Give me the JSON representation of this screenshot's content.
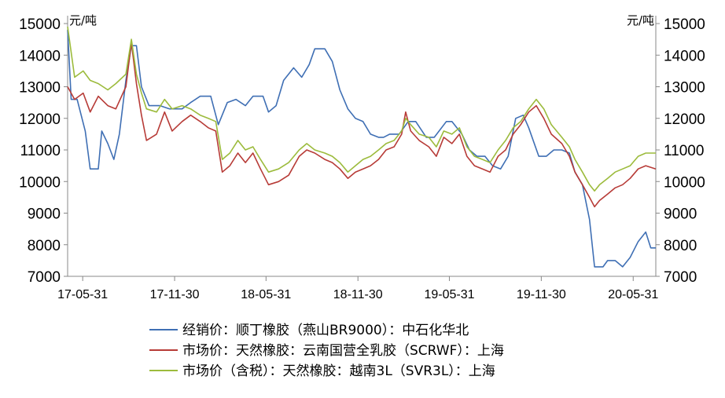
{
  "chart_data": {
    "type": "line",
    "y_unit_left": "元/吨",
    "y_unit_right": "元/吨",
    "ylim": [
      7000,
      15000
    ],
    "yticks": [
      7000,
      8000,
      9000,
      10000,
      11000,
      12000,
      13000,
      14000,
      15000
    ],
    "xlim": [
      "2017-05-01",
      "2020-07-15"
    ],
    "xticks": [
      {
        "date": "2017-05-31",
        "label": "17-05-31"
      },
      {
        "date": "2017-11-30",
        "label": "17-11-30"
      },
      {
        "date": "2018-05-31",
        "label": "18-05-31"
      },
      {
        "date": "2018-11-30",
        "label": "18-11-30"
      },
      {
        "date": "2019-05-31",
        "label": "19-05-31"
      },
      {
        "date": "2019-11-30",
        "label": "19-11-30"
      },
      {
        "date": "2020-05-31",
        "label": "20-05-31"
      }
    ],
    "grid": false,
    "legend_position": "bottom",
    "series": [
      {
        "name": "经销价：顺丁橡胶（燕山BR9000）：中石化华北",
        "color": "#3f6fb4",
        "points": [
          [
            "2017-05-01",
            14800
          ],
          [
            "2017-05-08",
            12600
          ],
          [
            "2017-05-20",
            12600
          ],
          [
            "2017-06-05",
            11600
          ],
          [
            "2017-06-15",
            10400
          ],
          [
            "2017-07-01",
            10400
          ],
          [
            "2017-07-08",
            11600
          ],
          [
            "2017-07-20",
            11200
          ],
          [
            "2017-08-01",
            10700
          ],
          [
            "2017-08-12",
            11500
          ],
          [
            "2017-08-25",
            13200
          ],
          [
            "2017-09-05",
            14300
          ],
          [
            "2017-09-15",
            14300
          ],
          [
            "2017-09-25",
            13000
          ],
          [
            "2017-10-10",
            12400
          ],
          [
            "2017-11-01",
            12400
          ],
          [
            "2017-11-20",
            12300
          ],
          [
            "2017-12-15",
            12300
          ],
          [
            "2018-01-01",
            12500
          ],
          [
            "2018-01-20",
            12700
          ],
          [
            "2018-02-10",
            12700
          ],
          [
            "2018-02-25",
            11800
          ],
          [
            "2018-03-15",
            12500
          ],
          [
            "2018-04-01",
            12600
          ],
          [
            "2018-04-20",
            12400
          ],
          [
            "2018-05-05",
            12700
          ],
          [
            "2018-05-25",
            12700
          ],
          [
            "2018-06-05",
            12200
          ],
          [
            "2018-06-20",
            12400
          ],
          [
            "2018-07-05",
            13200
          ],
          [
            "2018-07-25",
            13600
          ],
          [
            "2018-08-10",
            13300
          ],
          [
            "2018-08-25",
            13700
          ],
          [
            "2018-09-05",
            14200
          ],
          [
            "2018-09-25",
            14200
          ],
          [
            "2018-10-10",
            13800
          ],
          [
            "2018-10-25",
            12900
          ],
          [
            "2018-11-10",
            12300
          ],
          [
            "2018-11-25",
            12000
          ],
          [
            "2018-12-10",
            11900
          ],
          [
            "2018-12-25",
            11500
          ],
          [
            "2019-01-10",
            11400
          ],
          [
            "2019-01-20",
            11400
          ],
          [
            "2019-02-01",
            11500
          ],
          [
            "2019-02-20",
            11500
          ],
          [
            "2019-03-10",
            11900
          ],
          [
            "2019-03-25",
            11900
          ],
          [
            "2019-04-15",
            11400
          ],
          [
            "2019-05-01",
            11400
          ],
          [
            "2019-05-25",
            11900
          ],
          [
            "2019-06-05",
            11900
          ],
          [
            "2019-06-25",
            11500
          ],
          [
            "2019-07-10",
            11000
          ],
          [
            "2019-07-25",
            10800
          ],
          [
            "2019-08-10",
            10800
          ],
          [
            "2019-08-25",
            10500
          ],
          [
            "2019-09-10",
            10400
          ],
          [
            "2019-09-25",
            10800
          ],
          [
            "2019-10-10",
            12000
          ],
          [
            "2019-10-25",
            12100
          ],
          [
            "2019-11-05",
            11700
          ],
          [
            "2019-11-25",
            10800
          ],
          [
            "2019-12-10",
            10800
          ],
          [
            "2019-12-25",
            11000
          ],
          [
            "2020-01-10",
            11000
          ],
          [
            "2020-01-25",
            10900
          ],
          [
            "2020-02-05",
            10300
          ],
          [
            "2020-02-20",
            9900
          ],
          [
            "2020-03-05",
            8800
          ],
          [
            "2020-03-15",
            7300
          ],
          [
            "2020-04-01",
            7300
          ],
          [
            "2020-04-10",
            7500
          ],
          [
            "2020-04-25",
            7500
          ],
          [
            "2020-05-10",
            7300
          ],
          [
            "2020-05-25",
            7600
          ],
          [
            "2020-06-10",
            8100
          ],
          [
            "2020-06-25",
            8400
          ],
          [
            "2020-07-05",
            7900
          ],
          [
            "2020-07-15",
            7900
          ]
        ]
      },
      {
        "name": "市场价：天然橡胶：云南国营全乳胶（SCRWF）：上海",
        "color": "#b73b37",
        "points": [
          [
            "2017-05-01",
            13000
          ],
          [
            "2017-05-15",
            12600
          ],
          [
            "2017-06-01",
            12800
          ],
          [
            "2017-06-15",
            12200
          ],
          [
            "2017-07-01",
            12700
          ],
          [
            "2017-07-20",
            12400
          ],
          [
            "2017-08-05",
            12300
          ],
          [
            "2017-08-25",
            13000
          ],
          [
            "2017-09-05",
            14400
          ],
          [
            "2017-09-15",
            13100
          ],
          [
            "2017-09-25",
            12100
          ],
          [
            "2017-10-05",
            11300
          ],
          [
            "2017-10-25",
            11500
          ],
          [
            "2017-11-10",
            12200
          ],
          [
            "2017-11-25",
            11600
          ],
          [
            "2017-12-15",
            11900
          ],
          [
            "2018-01-01",
            12100
          ],
          [
            "2018-01-20",
            11900
          ],
          [
            "2018-02-05",
            11700
          ],
          [
            "2018-02-20",
            11600
          ],
          [
            "2018-03-05",
            10300
          ],
          [
            "2018-03-20",
            10500
          ],
          [
            "2018-04-05",
            10900
          ],
          [
            "2018-04-20",
            10600
          ],
          [
            "2018-05-05",
            10900
          ],
          [
            "2018-05-20",
            10400
          ],
          [
            "2018-06-05",
            9900
          ],
          [
            "2018-06-25",
            10000
          ],
          [
            "2018-07-15",
            10200
          ],
          [
            "2018-08-05",
            10800
          ],
          [
            "2018-08-20",
            11000
          ],
          [
            "2018-09-05",
            10900
          ],
          [
            "2018-09-25",
            10700
          ],
          [
            "2018-10-10",
            10600
          ],
          [
            "2018-10-25",
            10400
          ],
          [
            "2018-11-10",
            10100
          ],
          [
            "2018-11-25",
            10300
          ],
          [
            "2018-12-10",
            10400
          ],
          [
            "2018-12-25",
            10500
          ],
          [
            "2019-01-10",
            10700
          ],
          [
            "2019-01-25",
            11000
          ],
          [
            "2019-02-10",
            11100
          ],
          [
            "2019-02-25",
            11500
          ],
          [
            "2019-03-05",
            12200
          ],
          [
            "2019-03-15",
            11600
          ],
          [
            "2019-04-01",
            11300
          ],
          [
            "2019-04-20",
            11100
          ],
          [
            "2019-05-05",
            10800
          ],
          [
            "2019-05-20",
            11400
          ],
          [
            "2019-06-05",
            11200
          ],
          [
            "2019-06-20",
            11500
          ],
          [
            "2019-07-05",
            10800
          ],
          [
            "2019-07-20",
            10500
          ],
          [
            "2019-08-05",
            10400
          ],
          [
            "2019-08-20",
            10300
          ],
          [
            "2019-09-05",
            10800
          ],
          [
            "2019-09-20",
            11000
          ],
          [
            "2019-10-05",
            11500
          ],
          [
            "2019-10-20",
            11800
          ],
          [
            "2019-11-05",
            12200
          ],
          [
            "2019-11-20",
            12400
          ],
          [
            "2019-12-05",
            12000
          ],
          [
            "2019-12-20",
            11500
          ],
          [
            "2020-01-10",
            11200
          ],
          [
            "2020-01-25",
            10800
          ],
          [
            "2020-02-05",
            10300
          ],
          [
            "2020-02-20",
            9900
          ],
          [
            "2020-03-05",
            9500
          ],
          [
            "2020-03-15",
            9200
          ],
          [
            "2020-03-25",
            9400
          ],
          [
            "2020-04-10",
            9600
          ],
          [
            "2020-04-25",
            9800
          ],
          [
            "2020-05-10",
            9900
          ],
          [
            "2020-05-25",
            10100
          ],
          [
            "2020-06-10",
            10400
          ],
          [
            "2020-06-25",
            10500
          ],
          [
            "2020-07-15",
            10400
          ]
        ]
      },
      {
        "name": "市场价（含税）：天然橡胶：越南3L（SVR3L）：上海",
        "color": "#9cbb3c",
        "points": [
          [
            "2017-05-01",
            14900
          ],
          [
            "2017-05-15",
            13300
          ],
          [
            "2017-06-01",
            13500
          ],
          [
            "2017-06-15",
            13200
          ],
          [
            "2017-07-01",
            13100
          ],
          [
            "2017-07-20",
            12900
          ],
          [
            "2017-08-05",
            13100
          ],
          [
            "2017-08-25",
            13400
          ],
          [
            "2017-09-05",
            14500
          ],
          [
            "2017-09-15",
            13400
          ],
          [
            "2017-09-25",
            12800
          ],
          [
            "2017-10-05",
            12300
          ],
          [
            "2017-10-25",
            12200
          ],
          [
            "2017-11-10",
            12600
          ],
          [
            "2017-11-25",
            12300
          ],
          [
            "2017-12-15",
            12400
          ],
          [
            "2018-01-01",
            12300
          ],
          [
            "2018-01-20",
            12100
          ],
          [
            "2018-02-05",
            12000
          ],
          [
            "2018-02-20",
            11900
          ],
          [
            "2018-03-05",
            10700
          ],
          [
            "2018-03-20",
            10900
          ],
          [
            "2018-04-05",
            11300
          ],
          [
            "2018-04-20",
            11000
          ],
          [
            "2018-05-05",
            11100
          ],
          [
            "2018-05-20",
            10700
          ],
          [
            "2018-06-05",
            10300
          ],
          [
            "2018-06-25",
            10400
          ],
          [
            "2018-07-15",
            10600
          ],
          [
            "2018-08-05",
            11000
          ],
          [
            "2018-08-20",
            11200
          ],
          [
            "2018-09-05",
            11000
          ],
          [
            "2018-09-25",
            10900
          ],
          [
            "2018-10-10",
            10800
          ],
          [
            "2018-10-25",
            10600
          ],
          [
            "2018-11-10",
            10300
          ],
          [
            "2018-11-25",
            10500
          ],
          [
            "2018-12-10",
            10700
          ],
          [
            "2018-12-25",
            10800
          ],
          [
            "2019-01-10",
            11000
          ],
          [
            "2019-01-25",
            11200
          ],
          [
            "2019-02-10",
            11300
          ],
          [
            "2019-02-25",
            11600
          ],
          [
            "2019-03-05",
            12000
          ],
          [
            "2019-03-15",
            11800
          ],
          [
            "2019-04-01",
            11500
          ],
          [
            "2019-04-20",
            11400
          ],
          [
            "2019-05-05",
            11100
          ],
          [
            "2019-05-20",
            11600
          ],
          [
            "2019-06-05",
            11500
          ],
          [
            "2019-06-20",
            11700
          ],
          [
            "2019-07-05",
            11100
          ],
          [
            "2019-07-20",
            10800
          ],
          [
            "2019-08-05",
            10700
          ],
          [
            "2019-08-20",
            10600
          ],
          [
            "2019-09-05",
            11000
          ],
          [
            "2019-09-20",
            11300
          ],
          [
            "2019-10-05",
            11700
          ],
          [
            "2019-10-20",
            11900
          ],
          [
            "2019-11-05",
            12300
          ],
          [
            "2019-11-20",
            12600
          ],
          [
            "2019-12-05",
            12300
          ],
          [
            "2019-12-20",
            11800
          ],
          [
            "2020-01-10",
            11400
          ],
          [
            "2020-01-25",
            11100
          ],
          [
            "2020-02-05",
            10700
          ],
          [
            "2020-02-20",
            10300
          ],
          [
            "2020-03-05",
            9900
          ],
          [
            "2020-03-15",
            9700
          ],
          [
            "2020-03-25",
            9900
          ],
          [
            "2020-04-10",
            10100
          ],
          [
            "2020-04-25",
            10300
          ],
          [
            "2020-05-10",
            10400
          ],
          [
            "2020-05-25",
            10500
          ],
          [
            "2020-06-10",
            10800
          ],
          [
            "2020-06-25",
            10900
          ],
          [
            "2020-07-15",
            10900
          ]
        ]
      }
    ]
  }
}
